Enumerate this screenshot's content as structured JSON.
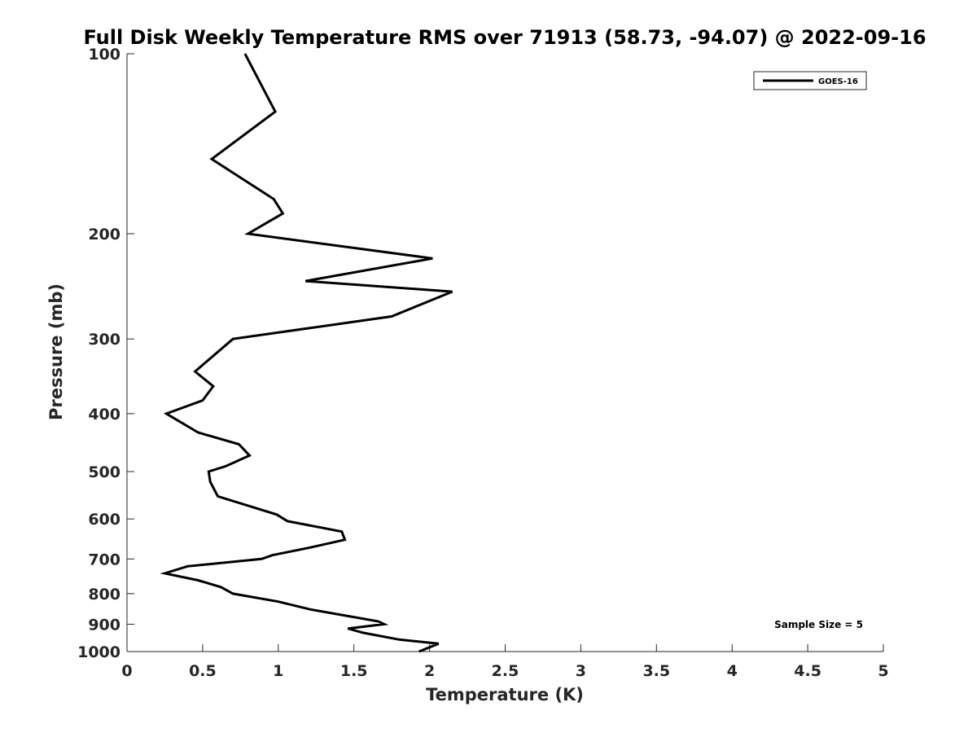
{
  "chart_data": {
    "type": "line",
    "title": "Full Disk Weekly Temperature RMS over 71913 (58.73, -94.07) @ 2022-09-16",
    "xlabel": "Temperature (K)",
    "ylabel": "Pressure (mb)",
    "xlim": [
      0,
      5
    ],
    "ylim": [
      100,
      1000
    ],
    "y_scale": "log",
    "y_reversed": true,
    "x_ticks": [
      "0",
      "0.5",
      "1",
      "1.5",
      "2",
      "2.5",
      "3",
      "3.5",
      "4",
      "4.5",
      "5"
    ],
    "y_ticks": [
      "100",
      "200",
      "300",
      "400",
      "500",
      "600",
      "700",
      "800",
      "900",
      "1000"
    ],
    "grid": false,
    "legend_position": "top-right",
    "annotation": "Sample Size = 5",
    "series": [
      {
        "name": "GOES-16",
        "color": "#000000",
        "points": [
          [
            0.78,
            100
          ],
          [
            0.98,
            125
          ],
          [
            0.56,
            150
          ],
          [
            0.97,
            175
          ],
          [
            1.03,
            185
          ],
          [
            0.8,
            200
          ],
          [
            2.02,
            220
          ],
          [
            1.18,
            240
          ],
          [
            2.15,
            250
          ],
          [
            1.75,
            275
          ],
          [
            0.7,
            300
          ],
          [
            0.45,
            340
          ],
          [
            0.57,
            360
          ],
          [
            0.5,
            380
          ],
          [
            0.26,
            400
          ],
          [
            0.47,
            430
          ],
          [
            0.74,
            450
          ],
          [
            0.81,
            470
          ],
          [
            0.65,
            490
          ],
          [
            0.54,
            500
          ],
          [
            0.55,
            520
          ],
          [
            0.6,
            550
          ],
          [
            0.99,
            590
          ],
          [
            1.06,
            605
          ],
          [
            1.42,
            630
          ],
          [
            1.44,
            650
          ],
          [
            1.21,
            670
          ],
          [
            0.96,
            690
          ],
          [
            0.89,
            700
          ],
          [
            0.4,
            720
          ],
          [
            0.25,
            740
          ],
          [
            0.47,
            760
          ],
          [
            0.62,
            780
          ],
          [
            0.7,
            800
          ],
          [
            1.0,
            825
          ],
          [
            1.21,
            850
          ],
          [
            1.49,
            875
          ],
          [
            1.66,
            890
          ],
          [
            1.7,
            900
          ],
          [
            1.46,
            915
          ],
          [
            1.56,
            930
          ],
          [
            1.8,
            955
          ],
          [
            2.06,
            970
          ],
          [
            1.93,
            1000
          ]
        ]
      }
    ]
  }
}
